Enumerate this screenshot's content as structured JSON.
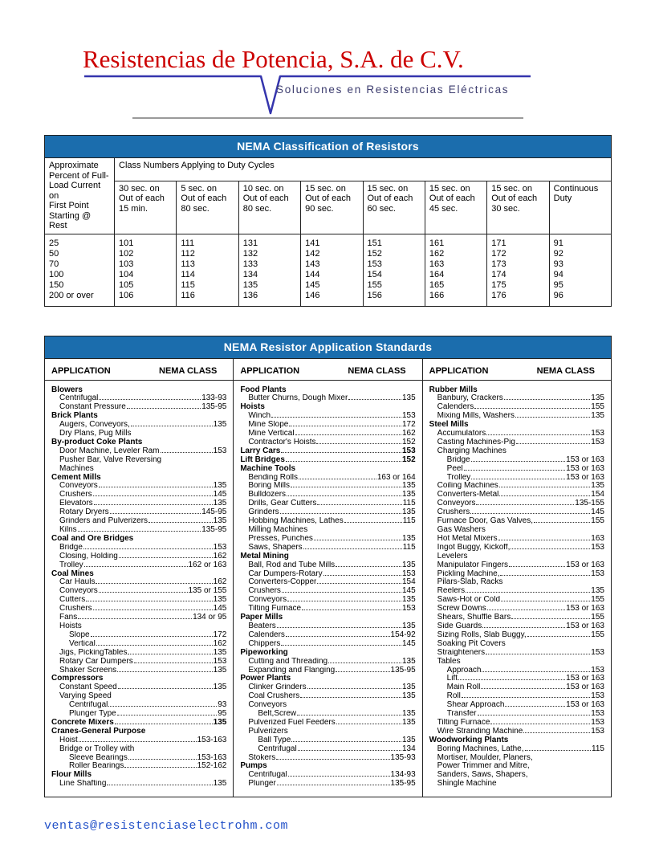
{
  "header": {
    "company": "Resistencias de Potencia, S.A. de C.V.",
    "tagline": "Soluciones en Resistencias Eléctricas"
  },
  "classification_table": {
    "title": "NEMA Classification of Resistors",
    "col1_header": "Approximate\nPercent of Full-\nLoad Current on\nFirst Point\nStarting @ Rest",
    "group_header": "Class Numbers Applying to Duty Cycles",
    "duty_headers": [
      "30 sec. on\nOut of each\n15 min.",
      "5 sec. on\nOut of each\n80 sec.",
      "10 sec. on\nOut of each\n80 sec.",
      "15 sec. on\nOut of each\n90 sec.",
      "15 sec. on\nOut of each\n60 sec.",
      "15 sec. on\nOut of each\n45 sec.",
      "15 sec. on\nOut of each\n30 sec.",
      "Continuous\nDuty"
    ],
    "rows": [
      {
        "percent": "25",
        "values": [
          "101",
          "111",
          "131",
          "141",
          "151",
          "161",
          "171",
          "91"
        ]
      },
      {
        "percent": "50",
        "values": [
          "102",
          "112",
          "132",
          "142",
          "152",
          "162",
          "172",
          "92"
        ]
      },
      {
        "percent": "70",
        "values": [
          "103",
          "113",
          "133",
          "143",
          "153",
          "163",
          "173",
          "93"
        ]
      },
      {
        "percent": "100",
        "values": [
          "104",
          "114",
          "134",
          "144",
          "154",
          "164",
          "174",
          "94"
        ]
      },
      {
        "percent": "150",
        "values": [
          "105",
          "115",
          "135",
          "145",
          "155",
          "165",
          "175",
          "95"
        ]
      },
      {
        "percent": "200 or over",
        "values": [
          "106",
          "116",
          "136",
          "146",
          "156",
          "166",
          "176",
          "96"
        ]
      }
    ]
  },
  "application_table": {
    "title": "NEMA Resistor Application Standards",
    "column_header_left": "APPLICATION",
    "column_header_right": "NEMA CLASS",
    "columns": [
      [
        {
          "t": "h",
          "l": "Blowers"
        },
        {
          "t": "e",
          "l": "Centrifugal",
          "v": "133-93"
        },
        {
          "t": "e",
          "l": "Constant Pressure",
          "v": "135-95"
        },
        {
          "t": "h",
          "l": "Brick Plants"
        },
        {
          "t": "e",
          "l": "Augers, Conveyors,",
          "v": "135"
        },
        {
          "t": "p",
          "l": "Dry Plans, Pug Mills"
        },
        {
          "t": "h",
          "l": "By-product Coke Plants"
        },
        {
          "t": "e",
          "l": "Door Machine, Leveler Ram",
          "v": "153"
        },
        {
          "t": "p",
          "l": "Pusher Bar, Valve Reversing"
        },
        {
          "t": "p",
          "l": "Machines"
        },
        {
          "t": "h",
          "l": "Cement Mills"
        },
        {
          "t": "e",
          "l": "Conveyors",
          "v": "135"
        },
        {
          "t": "e",
          "l": "Crushers",
          "v": "145"
        },
        {
          "t": "e",
          "l": "Elevators",
          "v": "135"
        },
        {
          "t": "e",
          "l": "Rotary Dryers",
          "v": "145-95"
        },
        {
          "t": "e",
          "l": "Grinders and Pulverizers",
          "v": "135"
        },
        {
          "t": "e",
          "l": "Kilns",
          "v": "135-95"
        },
        {
          "t": "h",
          "l": "Coal and Ore Bridges"
        },
        {
          "t": "e",
          "l": "Bridge",
          "v": "153"
        },
        {
          "t": "e",
          "l": "Closing, Holding",
          "v": "162"
        },
        {
          "t": "e",
          "l": "Trolley",
          "v": "162 or 163"
        },
        {
          "t": "h",
          "l": "Coal Mines"
        },
        {
          "t": "e",
          "l": "Car Hauls",
          "v": "162"
        },
        {
          "t": "e",
          "l": "Conveyors",
          "v": "135 or 155"
        },
        {
          "t": "e",
          "l": "Cutters",
          "v": "135"
        },
        {
          "t": "e",
          "l": "Crushers",
          "v": "145"
        },
        {
          "t": "e",
          "l": "Fans",
          "v": "134 or 95"
        },
        {
          "t": "p",
          "l": "Hoists"
        },
        {
          "t": "e2",
          "l": "Slope",
          "v": "172"
        },
        {
          "t": "e2",
          "l": "Vertical",
          "v": "162"
        },
        {
          "t": "e",
          "l": "Jigs, PickingTables",
          "v": "135"
        },
        {
          "t": "e",
          "l": "Rotary Car Dumpers",
          "v": "153"
        },
        {
          "t": "e",
          "l": "Shaker Screens",
          "v": "135"
        },
        {
          "t": "h",
          "l": "Compressors"
        },
        {
          "t": "e",
          "l": "Constant Speed",
          "v": "135"
        },
        {
          "t": "p",
          "l": "Varying Speed"
        },
        {
          "t": "e2",
          "l": "Centrifugal",
          "v": "93"
        },
        {
          "t": "e2",
          "l": "Plunger Type",
          "v": "95"
        },
        {
          "t": "he",
          "l": "Concrete Mixers",
          "v": "135"
        },
        {
          "t": "h",
          "l": "Cranes-General Purpose"
        },
        {
          "t": "e",
          "l": "Hoist",
          "v": "153-163"
        },
        {
          "t": "p",
          "l": "Bridge or Trolley with"
        },
        {
          "t": "e2",
          "l": "Sleeve Bearings",
          "v": "153-163"
        },
        {
          "t": "e2",
          "l": "Roller Bearings",
          "v": "152-162"
        },
        {
          "t": "h",
          "l": "Flour Mills"
        },
        {
          "t": "e",
          "l": "Line Shafting",
          "v": "135"
        }
      ],
      [
        {
          "t": "h",
          "l": "Food Plants"
        },
        {
          "t": "e",
          "l": "Butter Churns, Dough Mixer",
          "v": "135"
        },
        {
          "t": "h",
          "l": "Hoists"
        },
        {
          "t": "e",
          "l": "Winch",
          "v": "153"
        },
        {
          "t": "e",
          "l": "Mine Slope",
          "v": "172"
        },
        {
          "t": "e",
          "l": "Mine Vertical",
          "v": "162"
        },
        {
          "t": "e",
          "l": "Contractor's Hoists",
          "v": "152"
        },
        {
          "t": "he",
          "l": "Larry Cars",
          "v": "153"
        },
        {
          "t": "he",
          "l": "Lift Bridges",
          "v": "152"
        },
        {
          "t": "h",
          "l": "Machine Tools"
        },
        {
          "t": "e",
          "l": "Bending Rolls",
          "v": "163 or 164"
        },
        {
          "t": "e",
          "l": "Boring Mills",
          "v": "135"
        },
        {
          "t": "e",
          "l": "Bulldozers",
          "v": "135"
        },
        {
          "t": "e",
          "l": "Drills, Gear Cutters",
          "v": "115"
        },
        {
          "t": "e",
          "l": "Grinders",
          "v": "135"
        },
        {
          "t": "e",
          "l": "Hobbing Machines, Lathes",
          "v": "115"
        },
        {
          "t": "p",
          "l": "Milling Machines"
        },
        {
          "t": "e",
          "l": "Presses, Punches",
          "v": "135"
        },
        {
          "t": "e",
          "l": "Saws, Shapers",
          "v": "115"
        },
        {
          "t": "h",
          "l": "Metal Mining"
        },
        {
          "t": "e",
          "l": "Ball, Rod and Tube Mills",
          "v": "135"
        },
        {
          "t": "e",
          "l": "Car Dumpers-Rotary",
          "v": "153"
        },
        {
          "t": "e",
          "l": "Converters-Copper",
          "v": "154"
        },
        {
          "t": "e",
          "l": "Crushers",
          "v": "145"
        },
        {
          "t": "e",
          "l": "Conveyors",
          "v": "135"
        },
        {
          "t": "e",
          "l": "Tilting Furnace",
          "v": "153"
        },
        {
          "t": "h",
          "l": "Paper Mills"
        },
        {
          "t": "e",
          "l": "Beaters",
          "v": "135"
        },
        {
          "t": "e",
          "l": "Calenders",
          "v": "154-92"
        },
        {
          "t": "e",
          "l": "Chippers",
          "v": "145"
        },
        {
          "t": "h",
          "l": "Pipeworking"
        },
        {
          "t": "e",
          "l": "Cutting and Threading",
          "v": "135"
        },
        {
          "t": "e",
          "l": "Expanding and Flanging",
          "v": "135-95"
        },
        {
          "t": "h",
          "l": "Power Plants"
        },
        {
          "t": "e",
          "l": "Clinker Grinders",
          "v": "135"
        },
        {
          "t": "e",
          "l": "Coal Crushers",
          "v": "135"
        },
        {
          "t": "p",
          "l": "Conveyors"
        },
        {
          "t": "e2",
          "l": "Belt,Screw",
          "v": "135"
        },
        {
          "t": "e",
          "l": "Pulverized Fuel Feeders",
          "v": "135"
        },
        {
          "t": "p",
          "l": "Pulverizers"
        },
        {
          "t": "e2",
          "l": "Ball Type",
          "v": "135"
        },
        {
          "t": "e2",
          "l": "Centrifugal",
          "v": "134"
        },
        {
          "t": "e",
          "l": "Stokers",
          "v": "135-93"
        },
        {
          "t": "h",
          "l": "Pumps"
        },
        {
          "t": "e",
          "l": "Centrifugal",
          "v": "134-93"
        },
        {
          "t": "e",
          "l": "Plunger",
          "v": "135-95"
        }
      ],
      [
        {
          "t": "h",
          "l": "Rubber Mills"
        },
        {
          "t": "e",
          "l": "Banbury, Crackers",
          "v": "135"
        },
        {
          "t": "e",
          "l": "Calenders",
          "v": "155"
        },
        {
          "t": "e",
          "l": "Mixing Mills, Washers",
          "v": "135"
        },
        {
          "t": "h",
          "l": "Steel Mills"
        },
        {
          "t": "e",
          "l": "Accumulators",
          "v": "153"
        },
        {
          "t": "e",
          "l": "Casting Machines-Pig",
          "v": "153"
        },
        {
          "t": "p",
          "l": "Charging Machines"
        },
        {
          "t": "e2",
          "l": "Bridge",
          "v": "153 or 163"
        },
        {
          "t": "e2",
          "l": "Peel",
          "v": "153 or 163"
        },
        {
          "t": "e2",
          "l": "Trolley",
          "v": "153 or 163"
        },
        {
          "t": "e",
          "l": "Coiling Machines",
          "v": "135"
        },
        {
          "t": "e",
          "l": "Converters-Metal",
          "v": "154"
        },
        {
          "t": "e",
          "l": "Conveyors",
          "v": "135-155"
        },
        {
          "t": "e",
          "l": "Crushers",
          "v": "145"
        },
        {
          "t": "e",
          "l": "Furnace Door, Gas Valves,",
          "v": "155"
        },
        {
          "t": "p",
          "l": "Gas Washers"
        },
        {
          "t": "e",
          "l": "Hot Metal Mixers",
          "v": "163"
        },
        {
          "t": "e",
          "l": "Ingot Buggy, Kickoff,",
          "v": "153"
        },
        {
          "t": "p",
          "l": "Levelers"
        },
        {
          "t": "e",
          "l": "Manipulator Fingers",
          "v": "153 or 163"
        },
        {
          "t": "e",
          "l": "Pickling Machine,",
          "v": "153"
        },
        {
          "t": "p",
          "l": "Pilars-Slab, Racks"
        },
        {
          "t": "e",
          "l": "Reelers",
          "v": "135"
        },
        {
          "t": "e",
          "l": "Saws-Hot or Cold",
          "v": "155"
        },
        {
          "t": "e",
          "l": "Screw Downs",
          "v": "153 or 163"
        },
        {
          "t": "e",
          "l": "Shears, Shuffle Bars",
          "v": "155"
        },
        {
          "t": "e",
          "l": "Side Guards",
          "v": "153 or 163"
        },
        {
          "t": "e",
          "l": "Sizing Rolls, Slab Buggy,",
          "v": "155"
        },
        {
          "t": "p",
          "l": "Soaking Pit Covers"
        },
        {
          "t": "e",
          "l": "Straighteners",
          "v": "153"
        },
        {
          "t": "p",
          "l": "Tables"
        },
        {
          "t": "e2",
          "l": "Approach",
          "v": "153"
        },
        {
          "t": "e2",
          "l": "Lift",
          "v": "153 or 163"
        },
        {
          "t": "e2",
          "l": "Main Roll",
          "v": "153 or 163"
        },
        {
          "t": "e2",
          "l": "Roll",
          "v": "153"
        },
        {
          "t": "e2",
          "l": "Shear Approach",
          "v": "153 or 163"
        },
        {
          "t": "e2",
          "l": "Transfer",
          "v": "153"
        },
        {
          "t": "e",
          "l": "Tilting Furnace",
          "v": "153"
        },
        {
          "t": "e",
          "l": "Wire Stranding Machine",
          "v": "153"
        },
        {
          "t": "h",
          "l": "Woodworking Plants"
        },
        {
          "t": "e",
          "l": "Boring Machines, Lathe,",
          "v": "115"
        },
        {
          "t": "p",
          "l": "Mortiser, Moulder, Planers,"
        },
        {
          "t": "p",
          "l": "Power Trimmer and Mitre,"
        },
        {
          "t": "p",
          "l": "Sanders, Saws, Shapers,"
        },
        {
          "t": "p",
          "l": "Shingle Machine"
        }
      ]
    ]
  },
  "footer": {
    "email": "ventas@resistenciaselectrohm.com"
  }
}
